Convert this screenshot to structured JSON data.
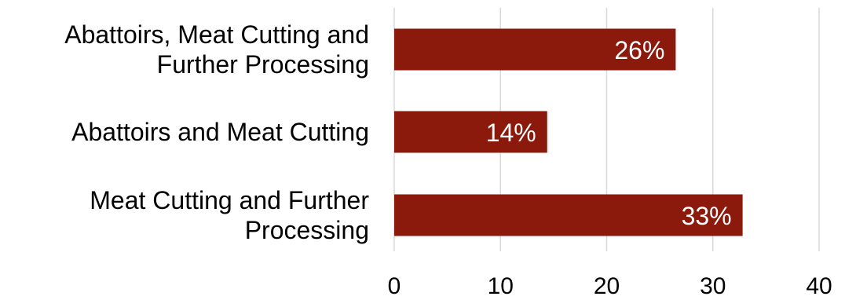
{
  "chart_data": {
    "type": "bar",
    "orientation": "horizontal",
    "categories": [
      "Abattoirs, Meat Cutting and\nFurther Processing",
      "Abattoirs and Meat Cutting",
      "Meat Cutting and Further\nProcessing"
    ],
    "values": [
      26.5,
      14.4,
      32.8
    ],
    "data_labels": [
      "26%",
      "14%",
      "33%"
    ],
    "x_ticks": [
      "0",
      "10",
      "20",
      "30",
      "40"
    ],
    "xlim": [
      0,
      40
    ],
    "grid": true,
    "bar_color": "#8B1A0C",
    "grid_color": "#D9D9D9"
  }
}
